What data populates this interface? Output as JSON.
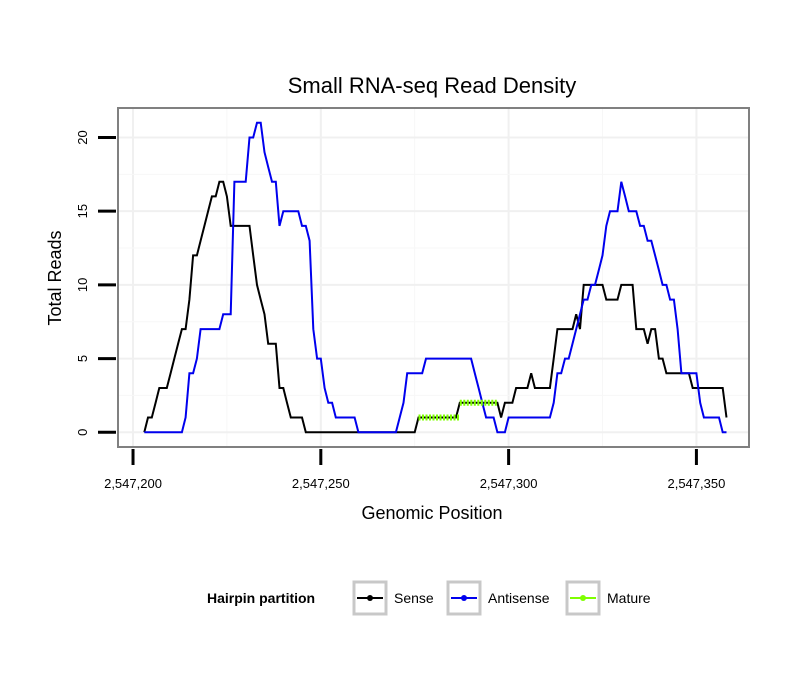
{
  "chart_data": {
    "type": "line",
    "title": "Small RNA-seq Read Density",
    "xlabel": "Genomic Position",
    "ylabel": "Total Reads",
    "xlim": [
      2547196,
      2547364
    ],
    "ylim": [
      -1,
      22
    ],
    "xticks": [
      2547200,
      2547250,
      2547300,
      2547350
    ],
    "xtick_labels": [
      "2,547,200",
      "2,547,250",
      "2,547,300",
      "2,547,350"
    ],
    "yticks": [
      0,
      5,
      10,
      15,
      20
    ],
    "ytick_labels": [
      "0",
      "5",
      "10",
      "15",
      "20"
    ],
    "grid": true,
    "legend": {
      "title": "Hairpin partition",
      "position": "bottom",
      "entries": [
        "Sense",
        "Antisense",
        "Mature"
      ]
    },
    "series": [
      {
        "name": "Sense",
        "color": "#000000",
        "points": [
          [
            2547203,
            0
          ],
          [
            2547204,
            1
          ],
          [
            2547205,
            1
          ],
          [
            2547206,
            2
          ],
          [
            2547207,
            3
          ],
          [
            2547208,
            3
          ],
          [
            2547209,
            3
          ],
          [
            2547210,
            4
          ],
          [
            2547211,
            5
          ],
          [
            2547212,
            6
          ],
          [
            2547213,
            7
          ],
          [
            2547214,
            7
          ],
          [
            2547215,
            9
          ],
          [
            2547216,
            12
          ],
          [
            2547217,
            12
          ],
          [
            2547218,
            13
          ],
          [
            2547219,
            14
          ],
          [
            2547220,
            15
          ],
          [
            2547221,
            16
          ],
          [
            2547222,
            16
          ],
          [
            2547223,
            17
          ],
          [
            2547224,
            17
          ],
          [
            2547225,
            16
          ],
          [
            2547226,
            14
          ],
          [
            2547227,
            14
          ],
          [
            2547228,
            14
          ],
          [
            2547229,
            14
          ],
          [
            2547230,
            14
          ],
          [
            2547231,
            14
          ],
          [
            2547232,
            12
          ],
          [
            2547233,
            10
          ],
          [
            2547234,
            9
          ],
          [
            2547235,
            8
          ],
          [
            2547236,
            6
          ],
          [
            2547237,
            6
          ],
          [
            2547238,
            6
          ],
          [
            2547239,
            3
          ],
          [
            2547240,
            3
          ],
          [
            2547241,
            2
          ],
          [
            2547242,
            1
          ],
          [
            2547243,
            1
          ],
          [
            2547244,
            1
          ],
          [
            2547245,
            1
          ],
          [
            2547246,
            0
          ],
          [
            2547250,
            0
          ],
          [
            2547255,
            0
          ],
          [
            2547260,
            0
          ],
          [
            2547265,
            0
          ],
          [
            2547270,
            0
          ],
          [
            2547275,
            0
          ],
          [
            2547276,
            1
          ],
          [
            2547277,
            1
          ],
          [
            2547280,
            1
          ],
          [
            2547285,
            1
          ],
          [
            2547286,
            1
          ],
          [
            2547287,
            2
          ],
          [
            2547290,
            2
          ],
          [
            2547295,
            2
          ],
          [
            2547296,
            2
          ],
          [
            2547297,
            2
          ],
          [
            2547298,
            1
          ],
          [
            2547299,
            2
          ],
          [
            2547300,
            2
          ],
          [
            2547301,
            2
          ],
          [
            2547302,
            3
          ],
          [
            2547303,
            3
          ],
          [
            2547305,
            3
          ],
          [
            2547306,
            4
          ],
          [
            2547307,
            3
          ],
          [
            2547308,
            3
          ],
          [
            2547309,
            3
          ],
          [
            2547310,
            3
          ],
          [
            2547311,
            3
          ],
          [
            2547312,
            5
          ],
          [
            2547313,
            7
          ],
          [
            2547314,
            7
          ],
          [
            2547315,
            7
          ],
          [
            2547316,
            7
          ],
          [
            2547317,
            7
          ],
          [
            2547318,
            8
          ],
          [
            2547319,
            7
          ],
          [
            2547320,
            10
          ],
          [
            2547321,
            10
          ],
          [
            2547322,
            10
          ],
          [
            2547323,
            10
          ],
          [
            2547324,
            10
          ],
          [
            2547325,
            10
          ],
          [
            2547326,
            9
          ],
          [
            2547327,
            9
          ],
          [
            2547328,
            9
          ],
          [
            2547329,
            9
          ],
          [
            2547330,
            10
          ],
          [
            2547331,
            10
          ],
          [
            2547332,
            10
          ],
          [
            2547333,
            10
          ],
          [
            2547334,
            7
          ],
          [
            2547335,
            7
          ],
          [
            2547336,
            7
          ],
          [
            2547337,
            6
          ],
          [
            2547338,
            7
          ],
          [
            2547339,
            7
          ],
          [
            2547340,
            5
          ],
          [
            2547341,
            5
          ],
          [
            2547342,
            4
          ],
          [
            2547343,
            4
          ],
          [
            2547344,
            4
          ],
          [
            2547345,
            4
          ],
          [
            2547346,
            4
          ],
          [
            2547347,
            4
          ],
          [
            2547348,
            4
          ],
          [
            2547349,
            3
          ],
          [
            2547350,
            3
          ],
          [
            2547355,
            3
          ],
          [
            2547356,
            3
          ],
          [
            2547357,
            3
          ],
          [
            2547358,
            1
          ]
        ]
      },
      {
        "name": "Antisense",
        "color": "#0000EE",
        "points": [
          [
            2547203,
            0
          ],
          [
            2547205,
            0
          ],
          [
            2547210,
            0
          ],
          [
            2547213,
            0
          ],
          [
            2547214,
            1
          ],
          [
            2547215,
            4
          ],
          [
            2547216,
            4
          ],
          [
            2547217,
            5
          ],
          [
            2547218,
            7
          ],
          [
            2547219,
            7
          ],
          [
            2547220,
            7
          ],
          [
            2547221,
            7
          ],
          [
            2547222,
            7
          ],
          [
            2547223,
            7
          ],
          [
            2547224,
            8
          ],
          [
            2547225,
            8
          ],
          [
            2547226,
            8
          ],
          [
            2547227,
            17
          ],
          [
            2547228,
            17
          ],
          [
            2547229,
            17
          ],
          [
            2547230,
            17
          ],
          [
            2547231,
            20
          ],
          [
            2547232,
            20
          ],
          [
            2547233,
            21
          ],
          [
            2547234,
            21
          ],
          [
            2547235,
            19
          ],
          [
            2547236,
            18
          ],
          [
            2547237,
            17
          ],
          [
            2547238,
            17
          ],
          [
            2547239,
            14
          ],
          [
            2547240,
            15
          ],
          [
            2547241,
            15
          ],
          [
            2547242,
            15
          ],
          [
            2547243,
            15
          ],
          [
            2547244,
            15
          ],
          [
            2547245,
            14
          ],
          [
            2547246,
            14
          ],
          [
            2547247,
            13
          ],
          [
            2547248,
            7
          ],
          [
            2547249,
            5
          ],
          [
            2547250,
            5
          ],
          [
            2547251,
            3
          ],
          [
            2547252,
            2
          ],
          [
            2547253,
            2
          ],
          [
            2547254,
            1
          ],
          [
            2547255,
            1
          ],
          [
            2547256,
            1
          ],
          [
            2547257,
            1
          ],
          [
            2547258,
            1
          ],
          [
            2547259,
            1
          ],
          [
            2547260,
            0
          ],
          [
            2547265,
            0
          ],
          [
            2547270,
            0
          ],
          [
            2547271,
            1
          ],
          [
            2547272,
            2
          ],
          [
            2547273,
            4
          ],
          [
            2547274,
            4
          ],
          [
            2547275,
            4
          ],
          [
            2547276,
            4
          ],
          [
            2547277,
            4
          ],
          [
            2547278,
            5
          ],
          [
            2547280,
            5
          ],
          [
            2547285,
            5
          ],
          [
            2547288,
            5
          ],
          [
            2547290,
            5
          ],
          [
            2547291,
            4
          ],
          [
            2547292,
            3
          ],
          [
            2547293,
            2
          ],
          [
            2547294,
            1
          ],
          [
            2547295,
            1
          ],
          [
            2547296,
            1
          ],
          [
            2547297,
            0
          ],
          [
            2547298,
            0
          ],
          [
            2547299,
            0
          ],
          [
            2547300,
            1
          ],
          [
            2547301,
            1
          ],
          [
            2547305,
            1
          ],
          [
            2547310,
            1
          ],
          [
            2547311,
            1
          ],
          [
            2547312,
            2
          ],
          [
            2547313,
            4
          ],
          [
            2547314,
            4
          ],
          [
            2547315,
            5
          ],
          [
            2547316,
            5
          ],
          [
            2547317,
            6
          ],
          [
            2547318,
            7
          ],
          [
            2547319,
            8
          ],
          [
            2547320,
            9
          ],
          [
            2547321,
            9
          ],
          [
            2547322,
            10
          ],
          [
            2547323,
            10
          ],
          [
            2547324,
            11
          ],
          [
            2547325,
            12
          ],
          [
            2547326,
            14
          ],
          [
            2547327,
            15
          ],
          [
            2547328,
            15
          ],
          [
            2547329,
            15
          ],
          [
            2547330,
            17
          ],
          [
            2547331,
            16
          ],
          [
            2547332,
            15
          ],
          [
            2547333,
            15
          ],
          [
            2547334,
            15
          ],
          [
            2547335,
            14
          ],
          [
            2547336,
            14
          ],
          [
            2547337,
            13
          ],
          [
            2547338,
            13
          ],
          [
            2547339,
            12
          ],
          [
            2547340,
            11
          ],
          [
            2547341,
            10
          ],
          [
            2547342,
            10
          ],
          [
            2547343,
            9
          ],
          [
            2547344,
            9
          ],
          [
            2547345,
            7
          ],
          [
            2547346,
            4
          ],
          [
            2547347,
            4
          ],
          [
            2547348,
            4
          ],
          [
            2547349,
            4
          ],
          [
            2547350,
            4
          ],
          [
            2547351,
            2
          ],
          [
            2547352,
            1
          ],
          [
            2547353,
            1
          ],
          [
            2547354,
            1
          ],
          [
            2547355,
            1
          ],
          [
            2547356,
            1
          ],
          [
            2547357,
            0
          ],
          [
            2547358,
            0
          ]
        ]
      },
      {
        "name": "Mature",
        "color": "#7FFF00",
        "segments": [
          [
            [
              2547276,
              1
            ],
            [
              2547287,
              1
            ]
          ],
          [
            [
              2547287,
              2
            ],
            [
              2547297,
              2
            ]
          ]
        ]
      }
    ]
  }
}
